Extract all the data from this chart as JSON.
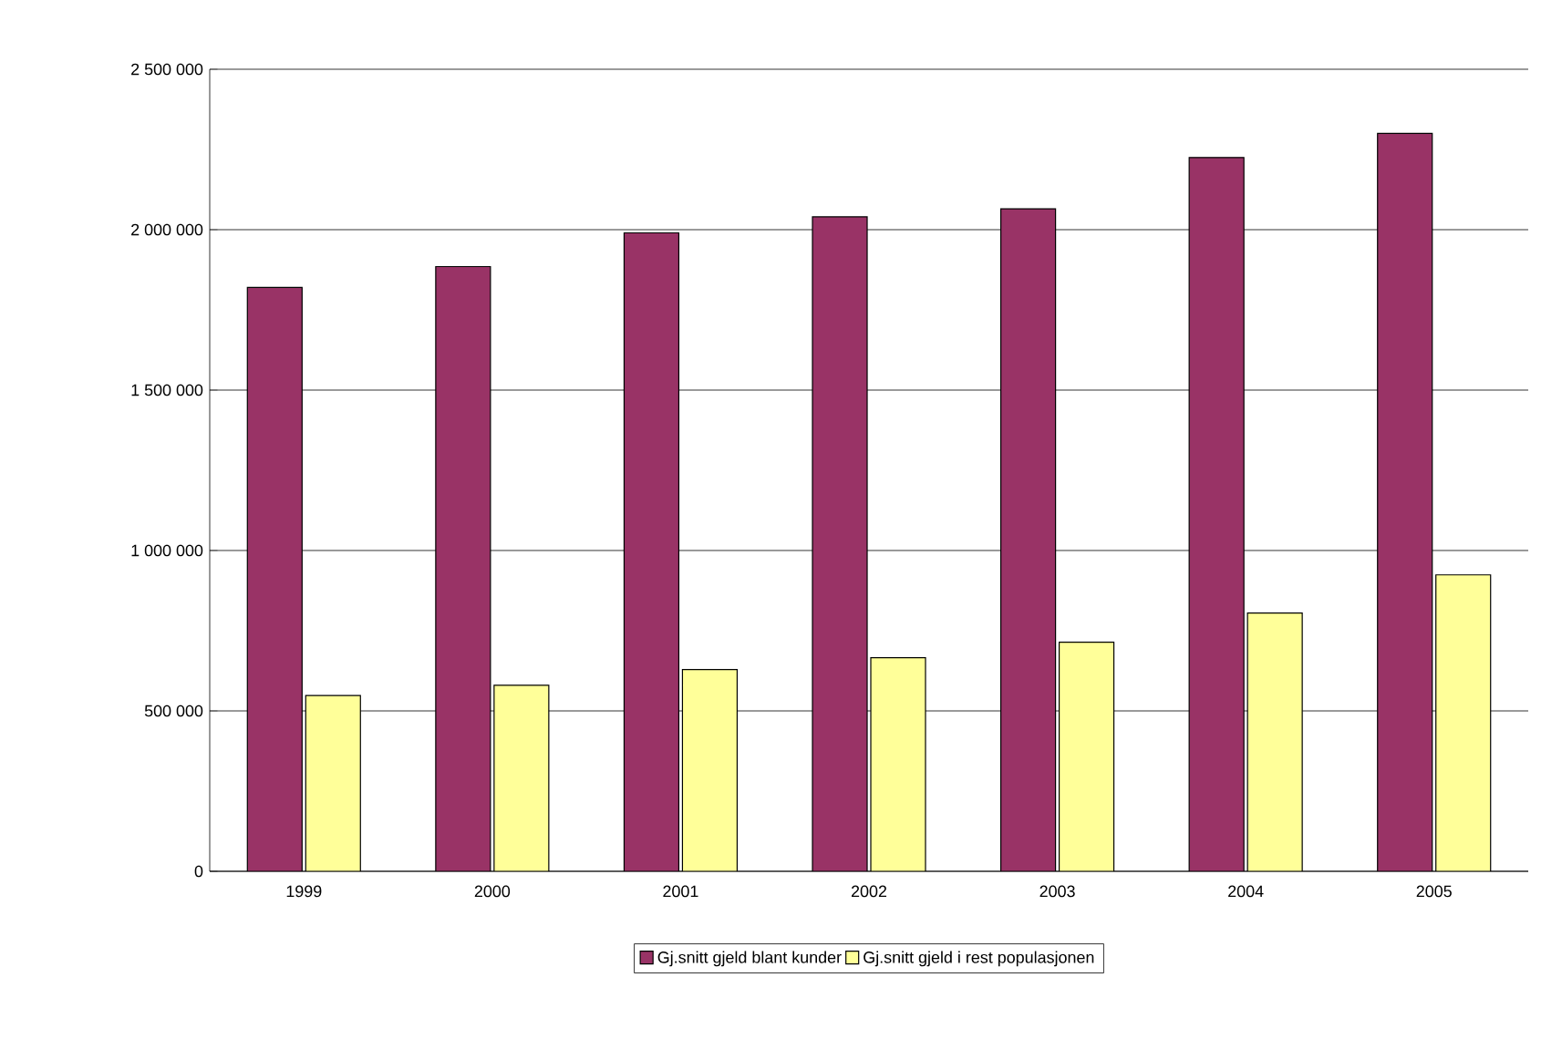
{
  "chart_data": {
    "type": "bar",
    "categories": [
      "1999",
      "2000",
      "2001",
      "2002",
      "2003",
      "2004",
      "2005"
    ],
    "series": [
      {
        "name": "Gj.snitt gjeld blant kunder",
        "color": "#993366",
        "values": [
          1820000,
          1885000,
          1990000,
          2040000,
          2065000,
          2225000,
          2300000
        ]
      },
      {
        "name": "Gj.snitt gjeld i rest populasjonen",
        "color": "#ffff99",
        "values": [
          548000,
          580000,
          629000,
          666000,
          714000,
          805000,
          924000
        ]
      }
    ],
    "ylim": [
      0,
      2500000
    ],
    "yticks": [
      {
        "value": 0,
        "label": "0"
      },
      {
        "value": 500000,
        "label": "500 000"
      },
      {
        "value": 1000000,
        "label": "1 000 000"
      },
      {
        "value": 1500000,
        "label": "1 500 000"
      },
      {
        "value": 2000000,
        "label": "2 000 000"
      },
      {
        "value": 2500000,
        "label": "2 500 000"
      }
    ],
    "grid": "y",
    "legend": "bottom"
  }
}
